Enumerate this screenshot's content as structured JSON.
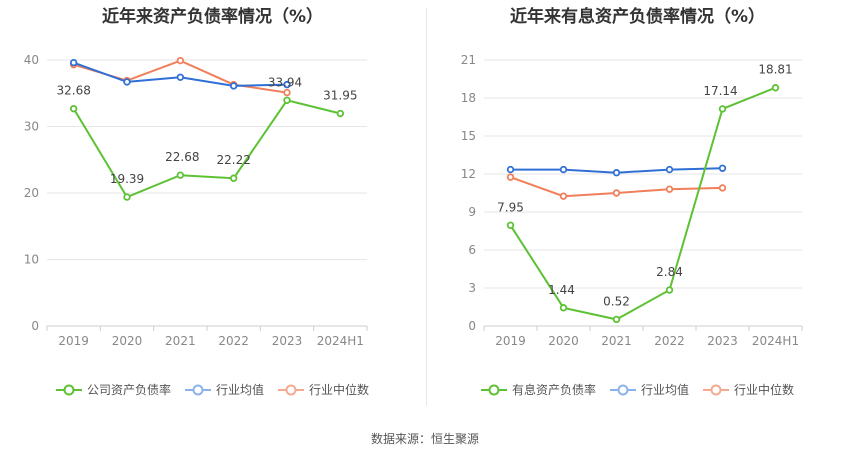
{
  "colors": {
    "company": "#5dc134",
    "avg": "#2f6fd6",
    "median": "#f07f5a",
    "avg_legend": "#8cb2ee",
    "median_legend": "#f5aa90",
    "grid": "#e6e6e6",
    "axis": "#cccccc",
    "tick_text": "#888888",
    "label_text": "#444444"
  },
  "source_text": "数据来源：恒生聚源",
  "chart_data": [
    {
      "type": "line",
      "title": "近年来资产负债率情况（%）",
      "categories": [
        "2019",
        "2020",
        "2021",
        "2022",
        "2023",
        "2024H1"
      ],
      "ylim": [
        0,
        40
      ],
      "yticks": [
        "0",
        "10",
        "20",
        "30",
        "40"
      ],
      "grid": true,
      "legend_position": "bottom",
      "series": [
        {
          "name": "公司资产负债率",
          "key": "company",
          "values": [
            32.68,
            19.39,
            22.68,
            22.22,
            33.94,
            31.95
          ],
          "labels": [
            "32.68",
            "19.39",
            "22.68",
            "22.22",
            "33.94",
            "31.95"
          ]
        },
        {
          "name": "行业均值",
          "key": "avg",
          "values": [
            39.6,
            36.7,
            37.4,
            36.1,
            36.3,
            null
          ]
        },
        {
          "name": "行业中位数",
          "key": "median",
          "values": [
            39.3,
            36.9,
            39.9,
            36.3,
            35.1,
            null
          ]
        }
      ]
    },
    {
      "type": "line",
      "title": "近年来有息资产负债率情况（%）",
      "categories": [
        "2019",
        "2020",
        "2021",
        "2022",
        "2023",
        "2024H1"
      ],
      "ylim": [
        0,
        21
      ],
      "yticks": [
        "0",
        "3",
        "6",
        "9",
        "12",
        "15",
        "18",
        "21"
      ],
      "grid": true,
      "legend_position": "bottom",
      "series": [
        {
          "name": "有息资产负债率",
          "key": "company",
          "values": [
            7.95,
            1.44,
            0.52,
            2.84,
            17.14,
            18.81
          ],
          "labels": [
            "7.95",
            "1.44",
            "0.52",
            "2.84",
            "17.14",
            "18.81"
          ]
        },
        {
          "name": "行业均值",
          "key": "avg",
          "values": [
            12.35,
            12.35,
            12.1,
            12.35,
            12.45,
            null
          ]
        },
        {
          "name": "行业中位数",
          "key": "median",
          "values": [
            11.75,
            10.25,
            10.5,
            10.8,
            10.9,
            null
          ]
        }
      ]
    }
  ]
}
